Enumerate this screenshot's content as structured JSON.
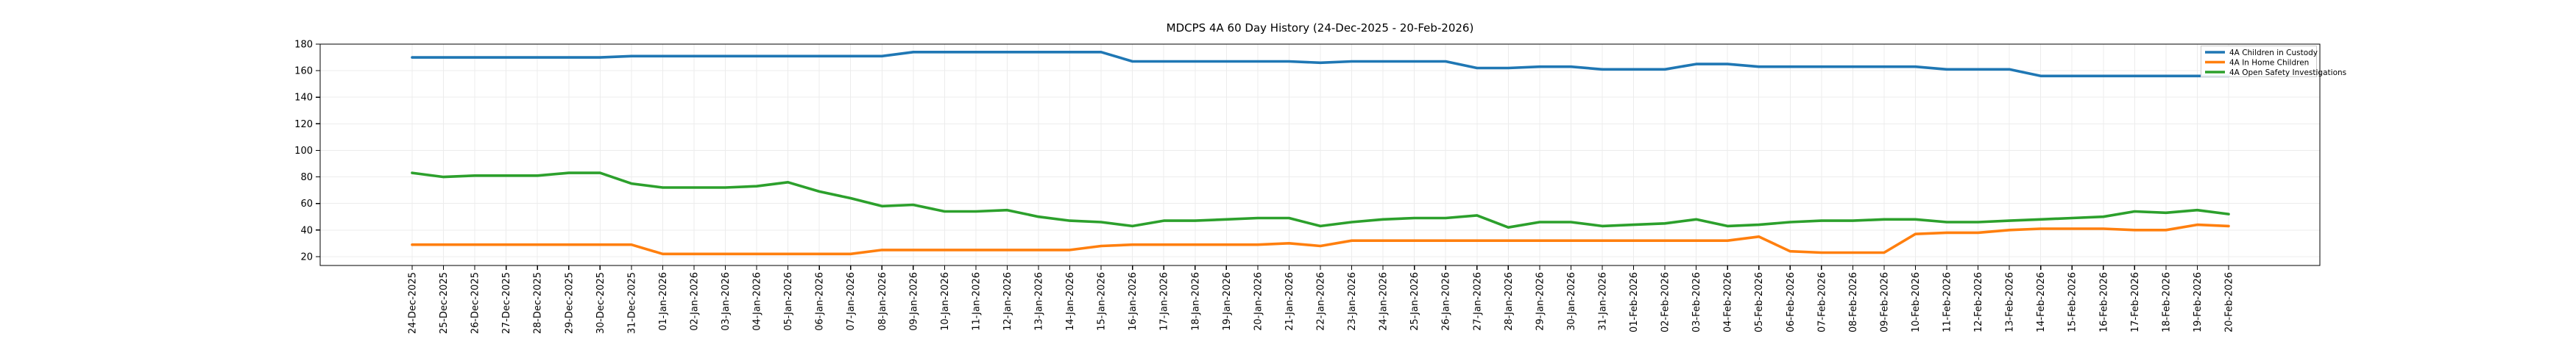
{
  "chart_data": {
    "type": "line",
    "title": "MDCPS 4A 60 Day History (24-Dec-2025 - 20-Feb-2026)",
    "xlabel": "",
    "ylabel": "",
    "grid": true,
    "legend_position": "upper right",
    "ylim": [
      13.3,
      180
    ],
    "y_ticks": [
      20,
      40,
      60,
      80,
      100,
      120,
      140,
      160,
      180
    ],
    "x_tick_labels": [
      "24-Dec-2025",
      "25-Dec-2025",
      "26-Dec-2025",
      "27-Dec-2025",
      "28-Dec-2025",
      "29-Dec-2025",
      "30-Dec-2025",
      "31-Dec-2025",
      "01-Jan-2026",
      "02-Jan-2026",
      "03-Jan-2026",
      "04-Jan-2026",
      "05-Jan-2026",
      "06-Jan-2026",
      "07-Jan-2026",
      "08-Jan-2026",
      "09-Jan-2026",
      "10-Jan-2026",
      "11-Jan-2026",
      "12-Jan-2026",
      "13-Jan-2026",
      "14-Jan-2026",
      "15-Jan-2026",
      "16-Jan-2026",
      "17-Jan-2026",
      "18-Jan-2026",
      "19-Jan-2026",
      "20-Jan-2026",
      "21-Jan-2026",
      "22-Jan-2026",
      "23-Jan-2026",
      "24-Jan-2026",
      "25-Jan-2026",
      "26-Jan-2026",
      "27-Jan-2026",
      "28-Jan-2026",
      "29-Jan-2026",
      "30-Jan-2026",
      "31-Jan-2026",
      "01-Feb-2026",
      "02-Feb-2026",
      "03-Feb-2026",
      "04-Feb-2026",
      "05-Feb-2026",
      "06-Feb-2026",
      "07-Feb-2026",
      "08-Feb-2026",
      "09-Feb-2026",
      "10-Feb-2026",
      "11-Feb-2026",
      "12-Feb-2026",
      "13-Feb-2026",
      "14-Feb-2026",
      "15-Feb-2026",
      "16-Feb-2026",
      "17-Feb-2026",
      "18-Feb-2026",
      "19-Feb-2026",
      "20-Feb-2026"
    ],
    "series": [
      {
        "name": "4A Children in Custody",
        "color": "#1f77b4",
        "values": [
          170,
          170,
          170,
          170,
          170,
          170,
          170,
          171,
          171,
          171,
          171,
          171,
          171,
          171,
          171,
          171,
          174,
          174,
          174,
          174,
          174,
          174,
          174,
          167,
          167,
          167,
          167,
          167,
          167,
          166,
          167,
          167,
          167,
          167,
          162,
          162,
          163,
          163,
          161,
          161,
          161,
          165,
          165,
          163,
          163,
          163,
          163,
          163,
          163,
          161,
          161,
          161,
          156,
          156,
          156,
          156,
          156,
          156,
          156
        ]
      },
      {
        "name": "4A In Home Children",
        "color": "#ff7f0e",
        "values": [
          29,
          29,
          29,
          29,
          29,
          29,
          29,
          29,
          22,
          22,
          22,
          22,
          22,
          22,
          22,
          25,
          25,
          25,
          25,
          25,
          25,
          25,
          28,
          29,
          29,
          29,
          29,
          29,
          30,
          28,
          32,
          32,
          32,
          32,
          32,
          32,
          32,
          32,
          32,
          32,
          32,
          32,
          32,
          35,
          24,
          23,
          23,
          23,
          37,
          38,
          38,
          40,
          41,
          41,
          41,
          40,
          40,
          44,
          43
        ]
      },
      {
        "name": "4A Open Safety Investigations",
        "color": "#2ca02c",
        "values": [
          83,
          80,
          81,
          81,
          81,
          83,
          83,
          75,
          72,
          72,
          72,
          73,
          76,
          69,
          64,
          58,
          59,
          54,
          54,
          55,
          50,
          47,
          46,
          43,
          47,
          47,
          48,
          49,
          49,
          43,
          46,
          48,
          49,
          49,
          51,
          42,
          46,
          46,
          43,
          44,
          45,
          48,
          43,
          44,
          46,
          47,
          47,
          48,
          48,
          46,
          46,
          47,
          48,
          49,
          50,
          54,
          53,
          55,
          52
        ]
      }
    ],
    "spine_color": "#000000",
    "grid_color": "#ececec",
    "tick_label_color": "#000000"
  }
}
